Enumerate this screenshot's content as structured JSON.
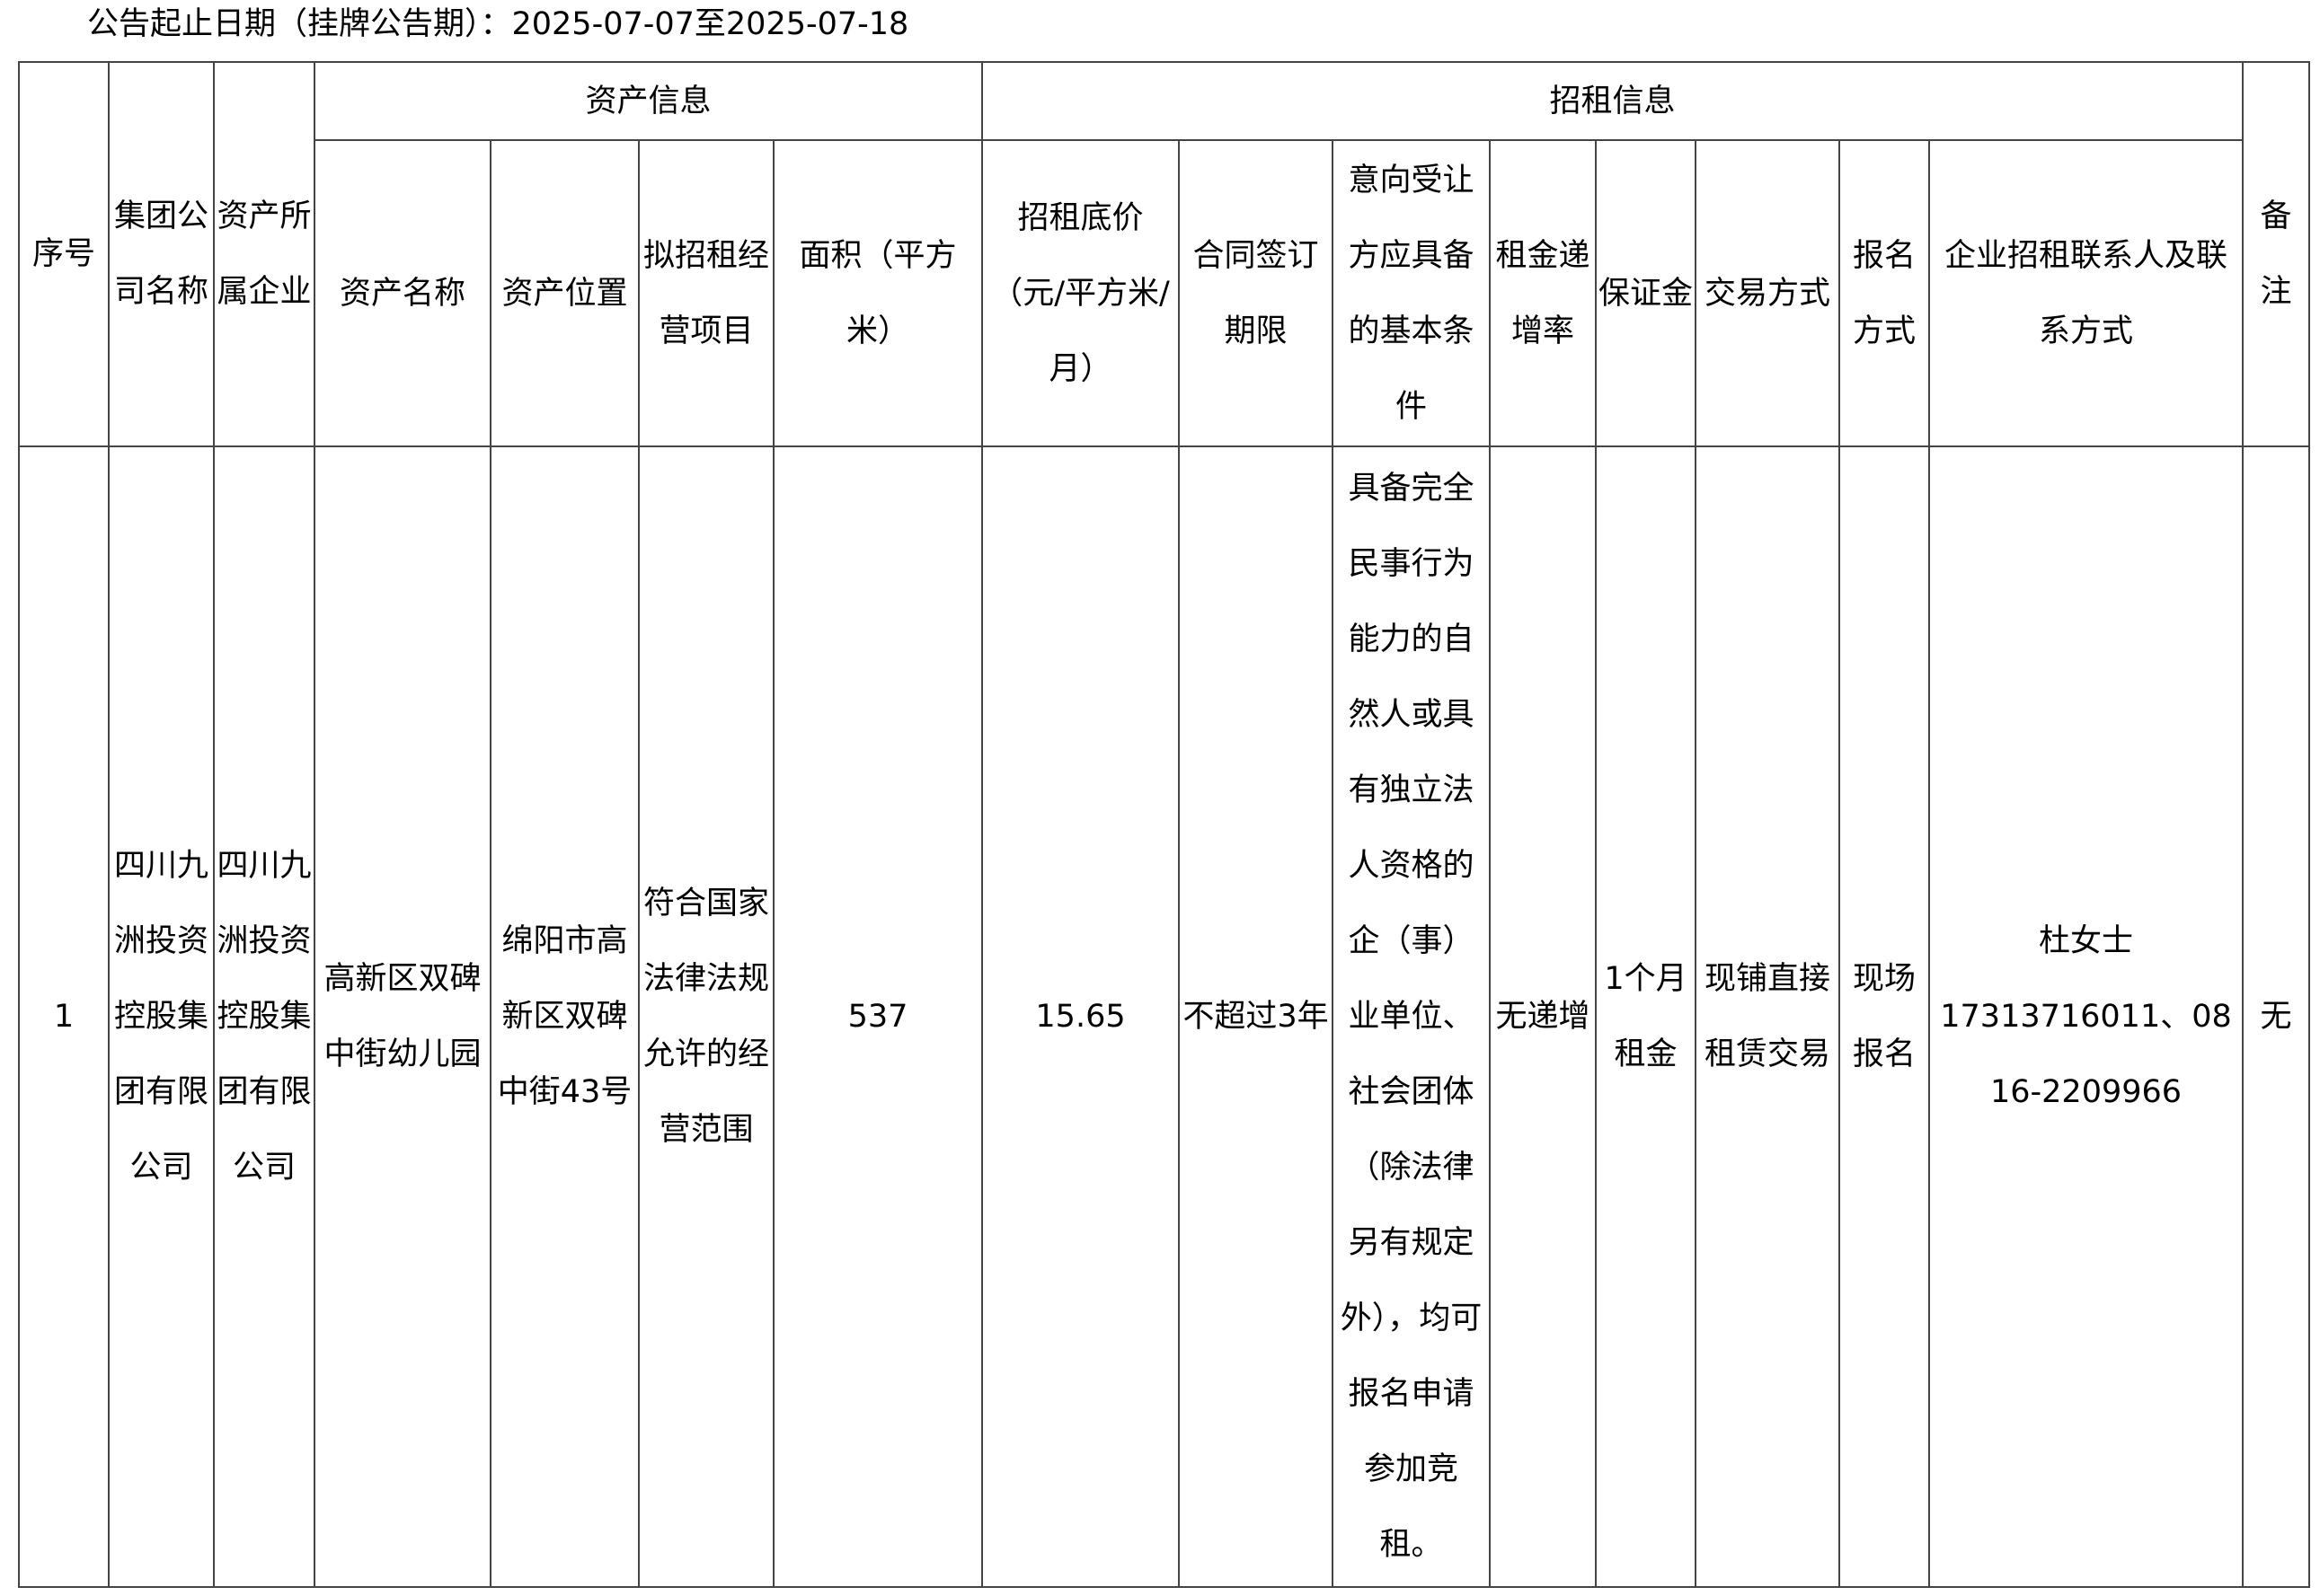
{
  "title": "公告起止日期（挂牌公告期）：2025-07-07至2025-07-18",
  "groups": {
    "asset": "资产信息",
    "lease": "招租信息"
  },
  "headers": {
    "seq": "序号",
    "group_company": "集团公司名称",
    "owner": "资产所属企业",
    "asset_name": "资产名称",
    "asset_location": "资产位置",
    "business": "拟招租经营项目",
    "area": "面积（平方米）",
    "base_price": "招租底价（元/平方米/月）",
    "term": "合同签订期限",
    "conditions": "意向受让方应具备的基本条件",
    "increase": "租金递增率",
    "deposit": "保证金",
    "trade_mode": "交易方式",
    "signup": "报名方式",
    "contact": "企业招租联系人及联系方式",
    "remark": "备注"
  },
  "rows": [
    {
      "seq": "1",
      "group_company": "四川九洲投资控股集团有限公司",
      "owner": "四川九洲投资控股集团有限公司",
      "asset_name": "高新区双碑中街幼儿园",
      "asset_location": "绵阳市高新区双碑中街43号",
      "business": "符合国家法律法规允许的经营范围",
      "area": "537",
      "base_price": "15.65",
      "term": "不超过3年",
      "conditions": "具备完全民事行为能力的自然人或具有独立法人资格的企（事）业单位、社会团体（除法律另有规定外），均可报名申请参加竞租。",
      "increase": "无递增",
      "deposit": "1个月租金",
      "trade_mode": "现铺直接租赁交易",
      "signup": "现场报名",
      "contact_name": "杜女士",
      "contact_phones": "17313716011、0816-2209966",
      "remark": "无"
    }
  ]
}
